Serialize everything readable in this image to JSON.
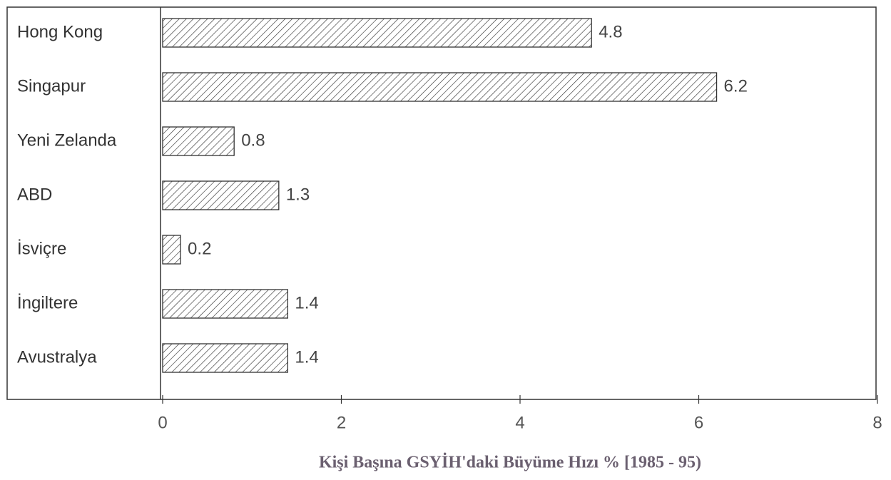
{
  "chart_data": {
    "type": "bar",
    "orientation": "horizontal",
    "x_label": "Kişi Başına GSYİH'daki Büyüme Hızı % [1985 - 95)",
    "categories": [
      "Hong Kong",
      "Singapur",
      "Yeni Zelanda",
      "ABD",
      "İsviçre",
      "İngiltere",
      "Avustralya"
    ],
    "values": [
      4.8,
      6.2,
      0.8,
      1.3,
      0.2,
      1.4,
      1.4
    ],
    "color": "#333333",
    "xlim": [
      0,
      8
    ],
    "xticks": [
      0,
      2,
      4,
      6,
      8
    ],
    "grid": false
  }
}
